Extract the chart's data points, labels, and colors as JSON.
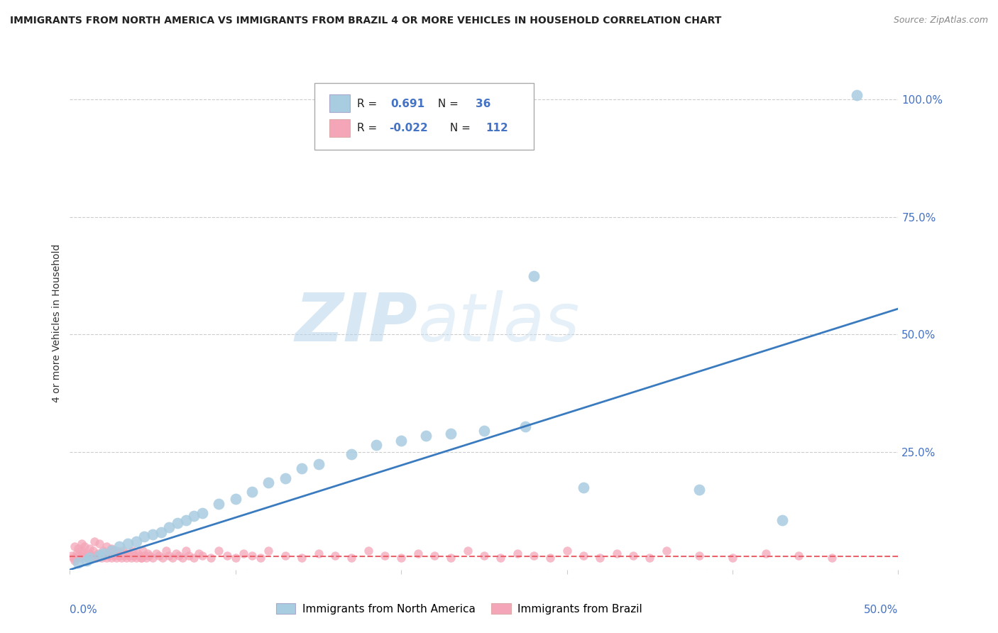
{
  "title": "IMMIGRANTS FROM NORTH AMERICA VS IMMIGRANTS FROM BRAZIL 4 OR MORE VEHICLES IN HOUSEHOLD CORRELATION CHART",
  "source": "Source: ZipAtlas.com",
  "ylabel": "4 or more Vehicles in Household",
  "blue_label": "Immigrants from North America",
  "pink_label": "Immigrants from Brazil",
  "blue_R": 0.691,
  "blue_N": 36,
  "pink_R": -0.022,
  "pink_N": 112,
  "blue_color": "#a8cce0",
  "pink_color": "#f4a6b8",
  "blue_line_color": "#3a7bbf",
  "pink_line_color": "#e8636b",
  "watermark_zip": "#c8dff0",
  "watermark_atlas": "#b0cce0",
  "background_color": "#ffffff",
  "grid_color": "#cccccc",
  "xlim": [
    0,
    0.5
  ],
  "ylim": [
    0,
    1.05
  ],
  "blue_line_x0": 0.0,
  "blue_line_y0": 0.0,
  "blue_line_x1": 0.5,
  "blue_line_y1": 0.555,
  "pink_line_y": 0.028,
  "blue_x": [
    0.005,
    0.01,
    0.012,
    0.018,
    0.02,
    0.025,
    0.03,
    0.035,
    0.04,
    0.045,
    0.05,
    0.055,
    0.06,
    0.065,
    0.07,
    0.075,
    0.08,
    0.09,
    0.1,
    0.11,
    0.12,
    0.13,
    0.14,
    0.15,
    0.17,
    0.185,
    0.2,
    0.215,
    0.23,
    0.25,
    0.275,
    0.28,
    0.31,
    0.38,
    0.475,
    0.43
  ],
  "blue_y": [
    0.015,
    0.02,
    0.025,
    0.03,
    0.035,
    0.04,
    0.05,
    0.055,
    0.06,
    0.07,
    0.075,
    0.08,
    0.09,
    0.1,
    0.105,
    0.115,
    0.12,
    0.14,
    0.15,
    0.165,
    0.185,
    0.195,
    0.215,
    0.225,
    0.245,
    0.265,
    0.275,
    0.285,
    0.29,
    0.295,
    0.305,
    0.625,
    0.175,
    0.17,
    1.01,
    0.105
  ],
  "pink_x": [
    0.001,
    0.002,
    0.003,
    0.004,
    0.005,
    0.006,
    0.007,
    0.008,
    0.009,
    0.01,
    0.011,
    0.012,
    0.013,
    0.014,
    0.015,
    0.016,
    0.017,
    0.018,
    0.019,
    0.02,
    0.021,
    0.022,
    0.023,
    0.024,
    0.025,
    0.026,
    0.027,
    0.028,
    0.029,
    0.03,
    0.031,
    0.032,
    0.033,
    0.034,
    0.035,
    0.036,
    0.037,
    0.038,
    0.039,
    0.04,
    0.041,
    0.042,
    0.043,
    0.044,
    0.045,
    0.046,
    0.047,
    0.048,
    0.05,
    0.052,
    0.054,
    0.056,
    0.058,
    0.06,
    0.062,
    0.064,
    0.066,
    0.068,
    0.07,
    0.072,
    0.075,
    0.078,
    0.08,
    0.085,
    0.09,
    0.095,
    0.1,
    0.105,
    0.11,
    0.115,
    0.12,
    0.13,
    0.14,
    0.15,
    0.16,
    0.17,
    0.18,
    0.19,
    0.2,
    0.21,
    0.22,
    0.23,
    0.24,
    0.25,
    0.26,
    0.27,
    0.28,
    0.29,
    0.3,
    0.31,
    0.32,
    0.33,
    0.34,
    0.35,
    0.36,
    0.38,
    0.4,
    0.42,
    0.44,
    0.46,
    0.003,
    0.005,
    0.007,
    0.009,
    0.012,
    0.015,
    0.018,
    0.022,
    0.025,
    0.028,
    0.033,
    0.038,
    0.043
  ],
  "pink_y": [
    0.03,
    0.025,
    0.02,
    0.035,
    0.03,
    0.025,
    0.04,
    0.035,
    0.03,
    0.025,
    0.03,
    0.035,
    0.025,
    0.04,
    0.03,
    0.025,
    0.035,
    0.03,
    0.025,
    0.04,
    0.03,
    0.025,
    0.035,
    0.03,
    0.025,
    0.04,
    0.03,
    0.025,
    0.035,
    0.03,
    0.025,
    0.04,
    0.03,
    0.025,
    0.035,
    0.03,
    0.025,
    0.04,
    0.03,
    0.025,
    0.035,
    0.03,
    0.025,
    0.04,
    0.03,
    0.025,
    0.035,
    0.03,
    0.025,
    0.035,
    0.03,
    0.025,
    0.04,
    0.03,
    0.025,
    0.035,
    0.03,
    0.025,
    0.04,
    0.03,
    0.025,
    0.035,
    0.03,
    0.025,
    0.04,
    0.03,
    0.025,
    0.035,
    0.03,
    0.025,
    0.04,
    0.03,
    0.025,
    0.035,
    0.03,
    0.025,
    0.04,
    0.03,
    0.025,
    0.035,
    0.03,
    0.025,
    0.04,
    0.03,
    0.025,
    0.035,
    0.03,
    0.025,
    0.04,
    0.03,
    0.025,
    0.035,
    0.03,
    0.025,
    0.04,
    0.03,
    0.025,
    0.035,
    0.03,
    0.025,
    0.05,
    0.045,
    0.055,
    0.05,
    0.045,
    0.06,
    0.055,
    0.05,
    0.045,
    0.04,
    0.035,
    0.03,
    0.025
  ]
}
